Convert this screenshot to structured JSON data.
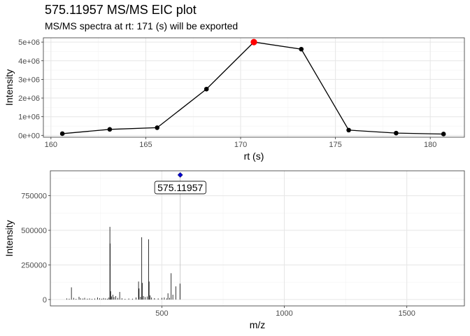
{
  "page": {
    "title": "575.11957 MS/MS EIC plot",
    "subtitle": "MS/MS spectra at rt: 171 (s) will be exported"
  },
  "colors": {
    "grid_major": "#e6e6e6",
    "grid_minor": "#f3f3f3",
    "panel_border": "#333333",
    "line": "#000000",
    "point": "#000000",
    "highlight_point": "#ff0000",
    "precursor_marker": "#0000cd",
    "spectrum_bar": "#000000",
    "precursor_bar": "#bfbfbf"
  },
  "chart_data": [
    {
      "type": "line",
      "xlabel": "rt (s)",
      "ylabel": "Intensity",
      "xlim": [
        159.6,
        181.8
      ],
      "ylim": [
        -100000,
        5230000
      ],
      "xticks": [
        160,
        165,
        170,
        175,
        180
      ],
      "xtick_labels": [
        "160",
        "165",
        "170",
        "175",
        "180"
      ],
      "yticks": [
        0,
        1000000,
        2000000,
        3000000,
        4000000,
        5000000
      ],
      "ytick_labels": [
        "0e+00",
        "1e+06",
        "2e+06",
        "3e+06",
        "4e+06",
        "5e+06"
      ],
      "grid": true,
      "x": [
        160.6,
        163.1,
        165.6,
        168.2,
        170.7,
        173.2,
        175.7,
        178.2,
        180.7
      ],
      "y": [
        90000,
        320000,
        410000,
        2480000,
        5000000,
        4620000,
        280000,
        120000,
        70000
      ],
      "highlight_index": 4
    },
    {
      "type": "bar",
      "xlabel": "m/z",
      "ylabel": "Intensity",
      "xlim": [
        45,
        1735
      ],
      "ylim": [
        -46000,
        930000
      ],
      "xticks": [
        500,
        1000,
        1500
      ],
      "xtick_labels": [
        "500",
        "1000",
        "1500"
      ],
      "yticks": [
        0,
        250000,
        500000,
        750000
      ],
      "ytick_labels": [
        "0",
        "250000",
        "500000",
        "750000"
      ],
      "grid": true,
      "precursor": {
        "mz": 575.11957,
        "intensity": 900000,
        "label": "575.11957"
      },
      "peaks": [
        {
          "mz": 112,
          "intensity": 8000
        },
        {
          "mz": 122,
          "intensity": 6000
        },
        {
          "mz": 131,
          "intensity": 88000
        },
        {
          "mz": 140,
          "intensity": 12000
        },
        {
          "mz": 150,
          "intensity": 5000
        },
        {
          "mz": 162,
          "intensity": 20000
        },
        {
          "mz": 168,
          "intensity": 9000
        },
        {
          "mz": 178,
          "intensity": 7000
        },
        {
          "mz": 185,
          "intensity": 12000
        },
        {
          "mz": 196,
          "intensity": 6000
        },
        {
          "mz": 205,
          "intensity": 8000
        },
        {
          "mz": 215,
          "intensity": 5000
        },
        {
          "mz": 226,
          "intensity": 7000
        },
        {
          "mz": 238,
          "intensity": 15000
        },
        {
          "mz": 246,
          "intensity": 9000
        },
        {
          "mz": 255,
          "intensity": 6000
        },
        {
          "mz": 262,
          "intensity": 11000
        },
        {
          "mz": 270,
          "intensity": 8000
        },
        {
          "mz": 278,
          "intensity": 6000
        },
        {
          "mz": 284,
          "intensity": 14000
        },
        {
          "mz": 288,
          "intensity": 525000
        },
        {
          "mz": 289,
          "intensity": 405000
        },
        {
          "mz": 291,
          "intensity": 60000
        },
        {
          "mz": 295,
          "intensity": 22000
        },
        {
          "mz": 300,
          "intensity": 35000
        },
        {
          "mz": 305,
          "intensity": 18000
        },
        {
          "mz": 312,
          "intensity": 25000
        },
        {
          "mz": 320,
          "intensity": 12000
        },
        {
          "mz": 328,
          "intensity": 55000
        },
        {
          "mz": 337,
          "intensity": 9000
        },
        {
          "mz": 350,
          "intensity": 5000
        },
        {
          "mz": 365,
          "intensity": 7000
        },
        {
          "mz": 380,
          "intensity": 6000
        },
        {
          "mz": 395,
          "intensity": 15000
        },
        {
          "mz": 405,
          "intensity": 130000
        },
        {
          "mz": 407,
          "intensity": 80000
        },
        {
          "mz": 413,
          "intensity": 20000
        },
        {
          "mz": 418,
          "intensity": 450000
        },
        {
          "mz": 420,
          "intensity": 120000
        },
        {
          "mz": 425,
          "intensity": 25000
        },
        {
          "mz": 432,
          "intensity": 18000
        },
        {
          "mz": 440,
          "intensity": 22000
        },
        {
          "mz": 446,
          "intensity": 435000
        },
        {
          "mz": 448,
          "intensity": 130000
        },
        {
          "mz": 452,
          "intensity": 30000
        },
        {
          "mz": 458,
          "intensity": 15000
        },
        {
          "mz": 470,
          "intensity": 10000
        },
        {
          "mz": 485,
          "intensity": 8000
        },
        {
          "mz": 500,
          "intensity": 12000
        },
        {
          "mz": 510,
          "intensity": 15000
        },
        {
          "mz": 520,
          "intensity": 8000
        },
        {
          "mz": 525,
          "intensity": 45000
        },
        {
          "mz": 532,
          "intensity": 12000
        },
        {
          "mz": 538,
          "intensity": 190000
        },
        {
          "mz": 545,
          "intensity": 35000
        },
        {
          "mz": 557,
          "intensity": 95000
        },
        {
          "mz": 574,
          "intensity": 115000
        }
      ]
    }
  ]
}
